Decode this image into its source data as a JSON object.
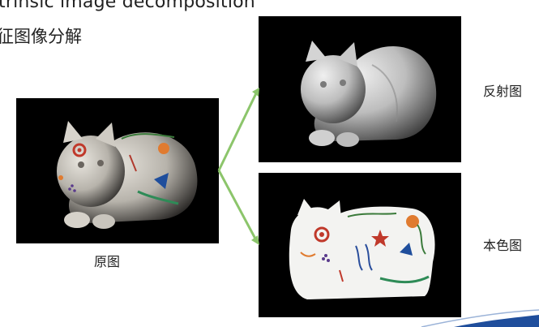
{
  "header": {
    "title_en": "trinsic image decomposition",
    "title_zh": "征图像分解"
  },
  "figure": {
    "original_caption": "原图",
    "shading_caption": "反射图",
    "albedo_caption": "本色图"
  },
  "colors": {
    "arrow": "#8cc56b",
    "panel_bg": "#000000",
    "accent_swoosh": "#1f4e9c"
  }
}
